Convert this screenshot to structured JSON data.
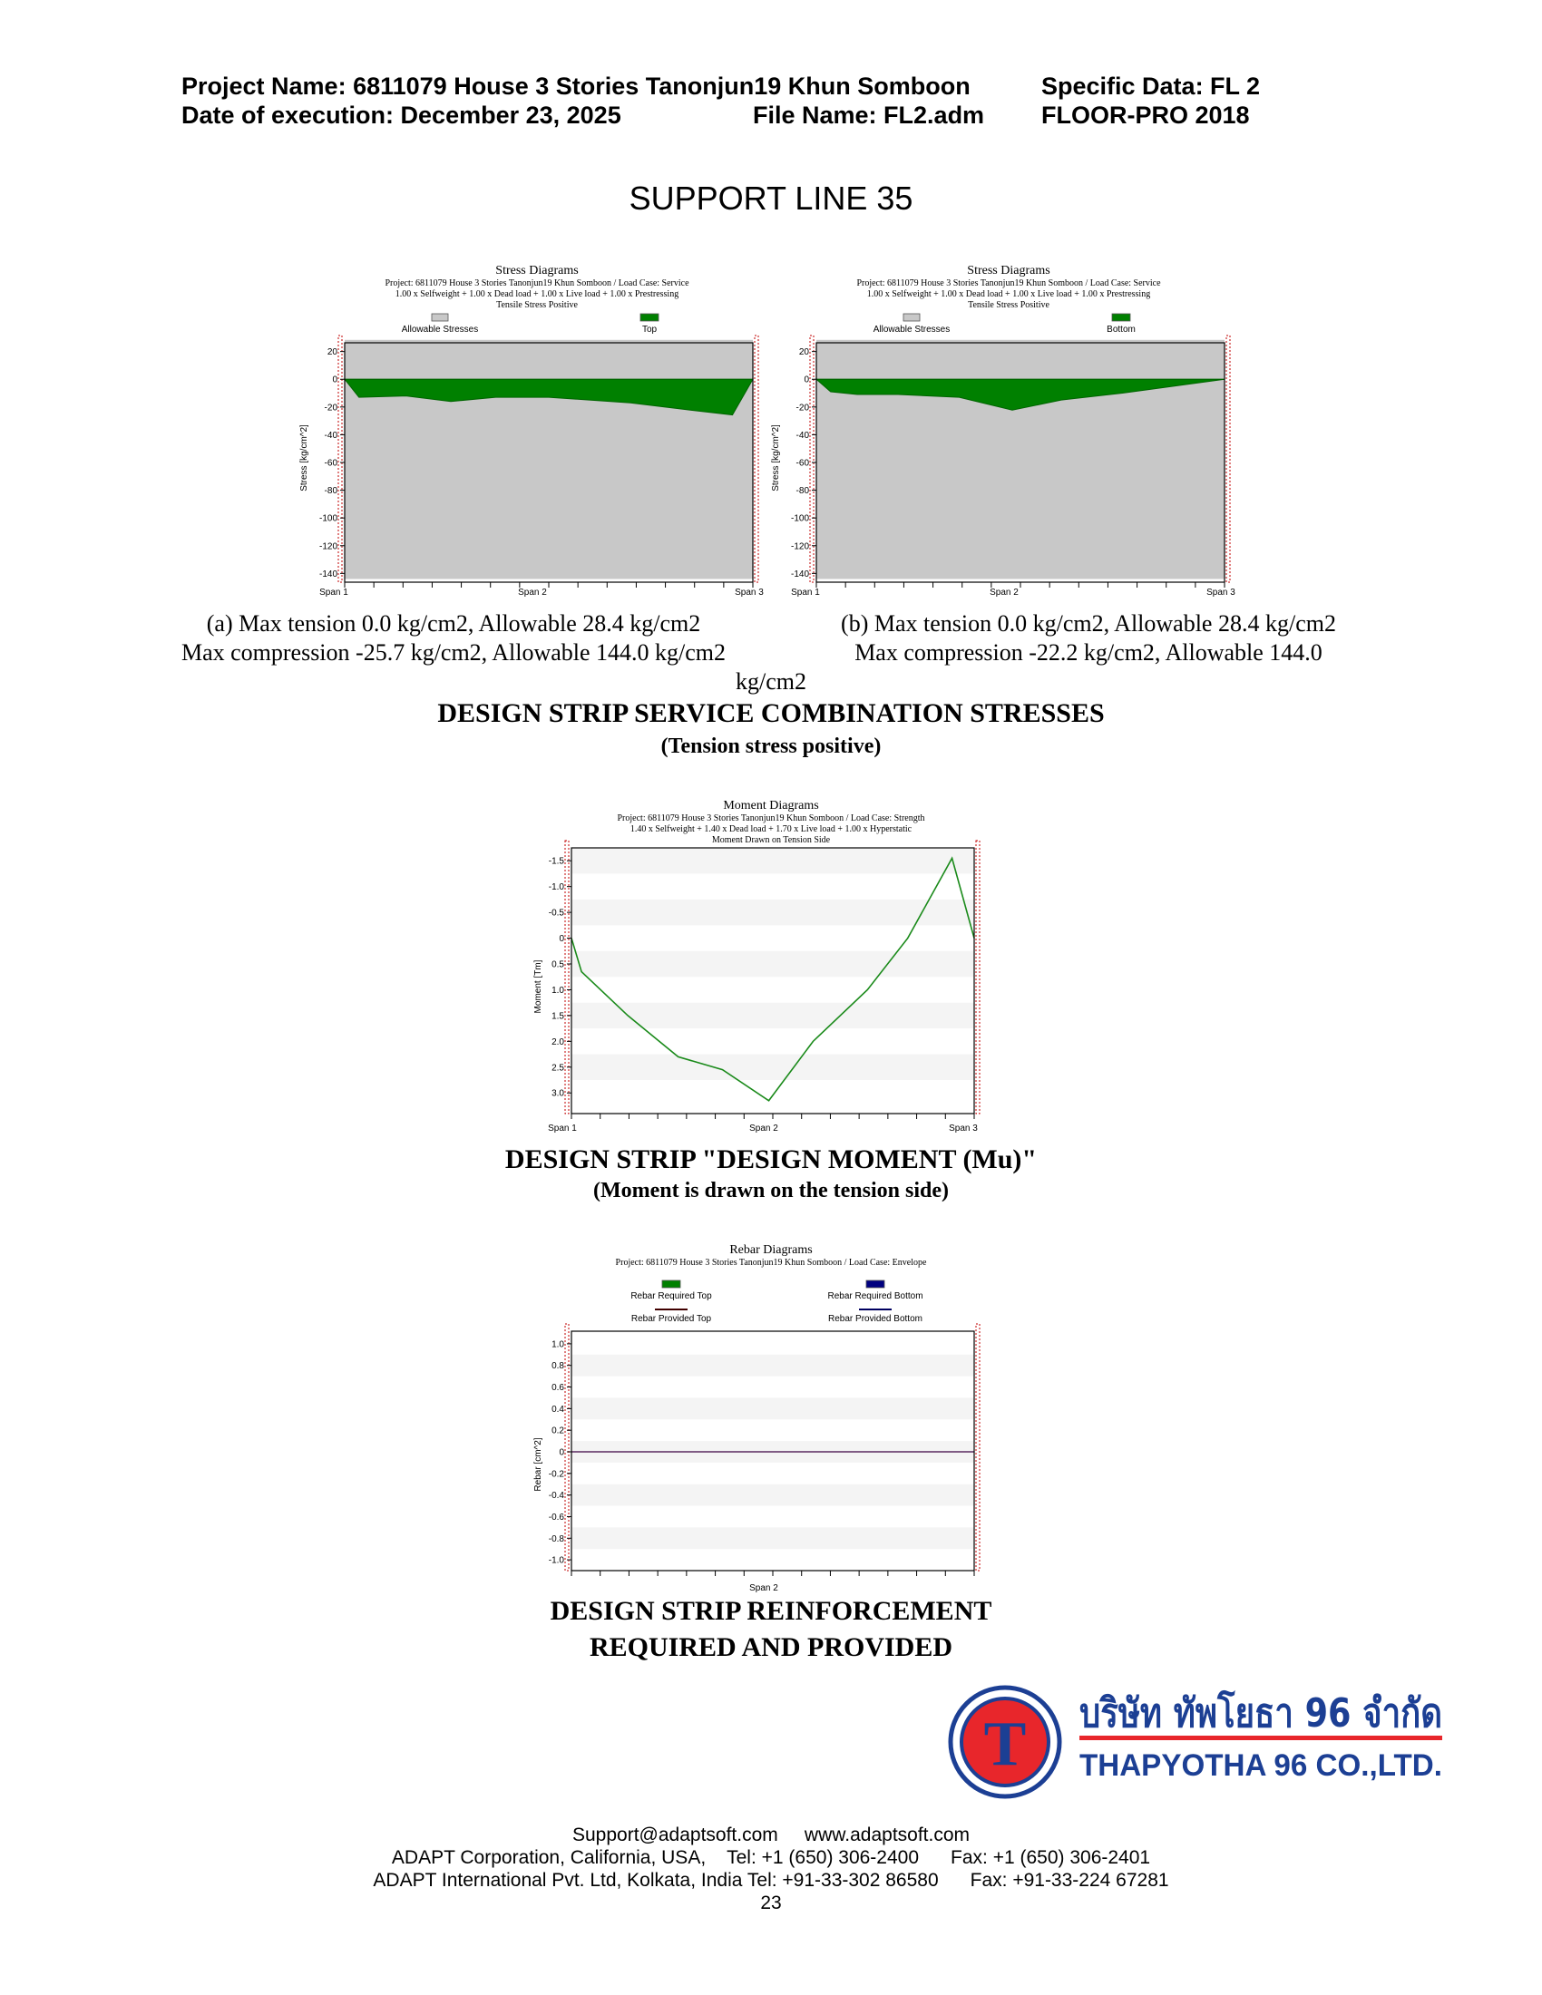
{
  "header": {
    "project_name": "Project Name: 6811079 House 3 Stories Tanonjun19 Khun Somboon",
    "specific_data": "Specific Data: FL 2",
    "date": "Date of execution: December 23, 2025",
    "file_name": "File Name: FL2.adm",
    "software": "FLOOR-PRO 2018"
  },
  "page_title": "SUPPORT LINE 35",
  "charts": {
    "stress_top": {
      "title": "Stress Diagrams",
      "sub1": "Project: 6811079 House 3 Stories Tanonjun19 Khun Somboon / Load Case: Service",
      "sub2": "1.00 x Selfweight + 1.00 x Dead load + 1.00 x Live load + 1.00 x Prestressing",
      "sub3": "Tensile Stress Positive",
      "legend1": "Allowable Stresses",
      "legend2": "Top",
      "ylabel": "Stress [kg/cm^2]",
      "span1": "Span  1",
      "span2": "Span  2",
      "span3": "Span  3",
      "yticks": [
        "20",
        "0",
        "-20",
        "-40",
        "-60",
        "-80",
        "-100",
        "-120",
        "-140"
      ]
    },
    "stress_bottom": {
      "title": "Stress Diagrams",
      "sub1": "Project: 6811079 House 3 Stories Tanonjun19 Khun Somboon / Load Case: Service",
      "sub2": "1.00 x Selfweight + 1.00 x Dead load + 1.00 x Live load + 1.00 x Prestressing",
      "sub3": "Tensile Stress Positive",
      "legend1": "Allowable Stresses",
      "legend2": "Bottom",
      "ylabel": "Stress [kg/cm^2]",
      "span1": "Span  1",
      "span2": "Span  2",
      "span3": "Span  3",
      "yticks": [
        "20",
        "0",
        "-20",
        "-40",
        "-60",
        "-80",
        "-100",
        "-120",
        "-140"
      ]
    },
    "moment": {
      "title": "Moment Diagrams",
      "sub1": "Project: 6811079 House 3 Stories Tanonjun19 Khun Somboon / Load Case: Strength",
      "sub2": "1.40 x Selfweight + 1.40 x Dead load + 1.70 x Live load + 1.00 x Hyperstatic",
      "sub3": "Moment Drawn on Tension Side",
      "ylabel": "Moment [Tm]",
      "span1": "Span  1",
      "span2": "Span  2",
      "span3": "Span  3",
      "yticks": [
        "-1.5",
        "-1.0",
        "-0.5",
        "0",
        "0.5",
        "1.0",
        "1.5",
        "2.0",
        "2.5",
        "3.0"
      ]
    },
    "rebar": {
      "title": "Rebar Diagrams",
      "sub1": "Project: 6811079 House 3 Stories Tanonjun19 Khun Somboon / Load Case: Envelope",
      "legend1": "Rebar Required Top",
      "legend2": "Rebar Required Bottom",
      "legend3": "Rebar Provided Top",
      "legend4": "Rebar Provided Bottom",
      "ylabel": "Rebar [cm^2]",
      "span2": "Span  2",
      "yticks": [
        "1.0",
        "0.8",
        "0.6",
        "0.4",
        "0.2",
        "0",
        "-0.2",
        "-0.4",
        "-0.6",
        "-0.8",
        "-1.0"
      ]
    }
  },
  "chart_data": [
    {
      "type": "area",
      "title": "Stress Diagrams",
      "ylabel": "Stress [kg/cm^2]",
      "ylim": [
        -145,
        25
      ],
      "x": [
        0,
        0.035,
        0.15,
        0.26,
        0.37,
        0.5,
        0.7,
        0.84,
        0.95,
        1.0
      ],
      "series": [
        {
          "name": "Allowable Stresses",
          "values": [
            [
              -144,
              28.4
            ]
          ]
        },
        {
          "name": "Top",
          "values": [
            0,
            -13,
            -12,
            -16,
            -13,
            -13,
            -17,
            -22,
            -25.7,
            0
          ]
        }
      ]
    },
    {
      "type": "area",
      "title": "Stress Diagrams",
      "ylabel": "Stress [kg/cm^2]",
      "ylim": [
        -145,
        25
      ],
      "x": [
        0,
        0.035,
        0.1,
        0.2,
        0.35,
        0.48,
        0.6,
        0.75,
        1.0
      ],
      "series": [
        {
          "name": "Allowable Stresses",
          "values": [
            [
              -144,
              28.4
            ]
          ]
        },
        {
          "name": "Bottom",
          "values": [
            0,
            -9,
            -11,
            -11,
            -13,
            -22.2,
            -15,
            -10,
            0
          ]
        }
      ]
    },
    {
      "type": "line",
      "title": "Moment Diagrams",
      "ylabel": "Moment [Tm]",
      "ylim": [
        -1.75,
        3.4
      ],
      "x": [
        0,
        0.025,
        0.14,
        0.265,
        0.375,
        0.49,
        0.6,
        0.735,
        0.835,
        0.945,
        1.0
      ],
      "values": [
        0,
        0.65,
        1.5,
        2.3,
        2.55,
        3.15,
        2.0,
        1.0,
        0.0,
        -1.55,
        0.0
      ]
    },
    {
      "type": "line",
      "title": "Rebar Diagrams",
      "ylabel": "Rebar [cm^2]",
      "ylim": [
        -1.0,
        1.0
      ],
      "x": [
        0,
        1
      ],
      "values": [
        0,
        0
      ]
    }
  ],
  "captions": {
    "a_line1": "(a) Max tension 0.0 kg/cm2, Allowable 28.4 kg/cm2",
    "a_line2": "Max compression -25.7 kg/cm2, Allowable 144.0 kg/cm2",
    "b_line1": "(b) Max tension 0.0 kg/cm2, Allowable 28.4 kg/cm2",
    "b_line2": "Max compression -22.2 kg/cm2, Allowable 144.0",
    "b_line3": "kg/cm2"
  },
  "sections": {
    "stress_title": "DESIGN STRIP SERVICE COMBINATION STRESSES",
    "stress_sub": "(Tension stress positive)",
    "moment_title": "DESIGN STRIP \"DESIGN MOMENT (Mu)\"",
    "moment_sub": "(Moment is drawn on the tension side)",
    "rebar_title1": "DESIGN STRIP REINFORCEMENT",
    "rebar_title2": "REQUIRED AND PROVIDED"
  },
  "logo": {
    "letter": "T",
    "thai": "บริษัท ทัพโยธา 96 จำกัด",
    "english": "THAPYOTHA 96 CO.,LTD.",
    "blue": "#1c3f94",
    "red": "#e8262b"
  },
  "footer": {
    "line1": "Support@adaptsoft.com     www.adaptsoft.com",
    "line2": "ADAPT Corporation, California, USA,    Tel: +1 (650) 306-2400      Fax: +1 (650) 306-2401",
    "line3": "ADAPT International Pvt. Ltd, Kolkata, India Tel: +91-33-302 86580      Fax: +91-33-224 67281",
    "page": "23"
  },
  "colors": {
    "green": "#008000",
    "allowable_gray": "#c8c8c8",
    "navy": "#000080",
    "support_red": "#c00000"
  }
}
